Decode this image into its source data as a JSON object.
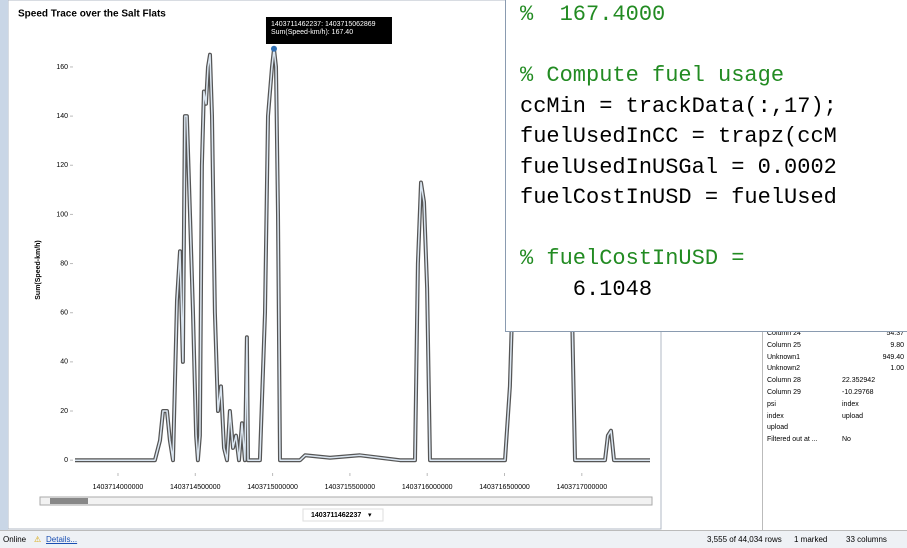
{
  "chart": {
    "type": "line",
    "title": "Speed Trace over the Salt Flats",
    "y_label": "Sum(Speed-km/h)",
    "x": [
      1403713722000,
      1403714239000,
      1403714272000,
      1403714291000,
      1403714317000,
      1403714336000,
      1403714356000,
      1403714382000,
      1403714401000,
      1403714420000,
      1403714433000,
      1403714446000,
      1403714466000,
      1403714485000,
      1403714505000,
      1403714517000,
      1403714530000,
      1403714543000,
      1403714556000,
      1403714569000,
      1403714582000,
      1403714595000,
      1403714608000,
      1403714627000,
      1403714647000,
      1403714666000,
      1403714686000,
      1403714705000,
      1403714724000,
      1403714744000,
      1403714763000,
      1403714783000,
      1403714802000,
      1403714821000,
      1403714834000,
      1403714841000,
      1403714918000,
      1403714951000,
      1403714970000,
      1403714996000,
      1403715009000,
      1403715022000,
      1403715035000,
      1403715048000,
      1403715177000,
      1403715210000,
      1403715371000,
      1403715565000,
      1403715824000,
      1403715921000,
      1403715940000,
      1403715960000,
      1403715979000,
      1403715999000,
      1403716018000,
      1403716503000,
      1403716535000,
      1403716568000,
      1403716600000,
      1403716891000,
      1403716924000,
      1403716956000,
      1403717150000,
      1403717169000,
      1403717189000,
      1403717208000,
      1403717441000
    ],
    "values": [
      0,
      0,
      8,
      20,
      20,
      8,
      0,
      65,
      85,
      40,
      140,
      140,
      100,
      60,
      10,
      0,
      10,
      120,
      150,
      145,
      160,
      165,
      140,
      60,
      20,
      30,
      5,
      0,
      20,
      5,
      10,
      0,
      15,
      0,
      50,
      0,
      0,
      60,
      140,
      160,
      167.4,
      160,
      100,
      0,
      0,
      2,
      1,
      2,
      0,
      0,
      80,
      113,
      105,
      70,
      0,
      0,
      30,
      100,
      110,
      110,
      100,
      0,
      0,
      10,
      12,
      0,
      0
    ],
    "color": "#555555",
    "xlim": [
      1403713722000,
      1403717441000
    ],
    "xticks": [
      1403714000000,
      1403714500000,
      1403715000000,
      1403715500000,
      1403716000000,
      1403716500000,
      1403717000000
    ],
    "ylim": [
      -4,
      173
    ],
    "yticks": [
      0,
      20,
      40,
      60,
      80,
      100,
      120,
      140,
      160
    ],
    "tooltip": [
      "1403711462237: 1403715062869",
      "Sum(Speed-km/h): 167.40"
    ],
    "selector": "1403711462237"
  },
  "code": {
    "lines": [
      "%  167.4000",
      "",
      "% Compute fuel usage",
      "ccMin = trackData(:,17);",
      "fuelUsedInCC = trapz(ccM",
      "fuelUsedInUSGal = 0.0002",
      "fuelCostInUSD = fuelUsed",
      "",
      "% fuelCostInUSD =",
      "    6.1048"
    ]
  },
  "table": {
    "rows": [
      [
        "Column 24",
        "54.37"
      ],
      [
        "Column 25",
        "9.80"
      ],
      [
        "Unknown1",
        "949.40"
      ],
      [
        "Unknown2",
        "1.00"
      ],
      [
        "Column 28",
        "22.352942"
      ],
      [
        "Column 29",
        "-10.29768"
      ],
      [
        "psi",
        "index"
      ],
      [
        "index",
        "upload"
      ],
      [
        "upload",
        ""
      ],
      [
        "Filtered out at ...",
        "No"
      ]
    ]
  },
  "status": {
    "online": "Online",
    "details": "Details...",
    "rows": "3,555 of 44,034 rows",
    "marked": "1 marked",
    "columns": "33 columns"
  }
}
